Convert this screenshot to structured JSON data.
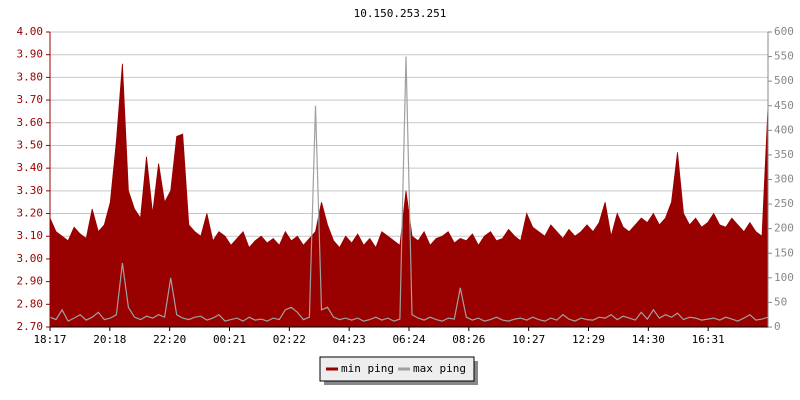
{
  "chart_data": {
    "type": "area",
    "title": "10.150.253.251",
    "xtick_labels": [
      "18:17",
      "20:18",
      "22:20",
      "00:21",
      "02:22",
      "04:23",
      "06:24",
      "08:26",
      "10:27",
      "12:29",
      "14:30",
      "16:31"
    ],
    "ylim": [
      2.7,
      4.0
    ],
    "yticks": [
      {
        "value": 2.7,
        "label": "2.70"
      },
      {
        "value": 2.8,
        "label": "2.80"
      },
      {
        "value": 2.9,
        "label": "2.90"
      },
      {
        "value": 3.0,
        "label": "3.00"
      },
      {
        "value": 3.1,
        "label": "3.10"
      },
      {
        "value": 3.2,
        "label": "3.20"
      },
      {
        "value": 3.3,
        "label": "3.30"
      },
      {
        "value": 3.4,
        "label": "3.40"
      },
      {
        "value": 3.5,
        "label": "3.50"
      },
      {
        "value": 3.6,
        "label": "3.60"
      },
      {
        "value": 3.7,
        "label": "3.70"
      },
      {
        "value": 3.8,
        "label": "3.80"
      },
      {
        "value": 3.9,
        "label": "3.90"
      },
      {
        "value": 4.0,
        "label": "4.00"
      }
    ],
    "y2lim": [
      0,
      600
    ],
    "y2ticks": [
      0,
      50,
      100,
      150,
      200,
      250,
      300,
      350,
      400,
      450,
      500,
      550,
      600
    ],
    "grid": true,
    "legend": "bottom",
    "series": [
      {
        "name": "min ping",
        "color": "#990000",
        "values": [
          3.18,
          3.12,
          3.1,
          3.08,
          3.14,
          3.11,
          3.09,
          3.22,
          3.12,
          3.15,
          3.25,
          3.52,
          3.86,
          3.3,
          3.22,
          3.18,
          3.45,
          3.2,
          3.42,
          3.25,
          3.3,
          3.54,
          3.55,
          3.15,
          3.12,
          3.1,
          3.2,
          3.08,
          3.12,
          3.1,
          3.06,
          3.09,
          3.12,
          3.05,
          3.08,
          3.1,
          3.07,
          3.09,
          3.06,
          3.12,
          3.08,
          3.1,
          3.06,
          3.09,
          3.12,
          3.25,
          3.15,
          3.08,
          3.05,
          3.1,
          3.07,
          3.11,
          3.06,
          3.09,
          3.05,
          3.12,
          3.1,
          3.08,
          3.06,
          3.3,
          3.1,
          3.08,
          3.12,
          3.06,
          3.09,
          3.1,
          3.12,
          3.07,
          3.09,
          3.08,
          3.11,
          3.06,
          3.1,
          3.12,
          3.08,
          3.09,
          3.13,
          3.1,
          3.08,
          3.2,
          3.14,
          3.12,
          3.1,
          3.15,
          3.12,
          3.09,
          3.13,
          3.1,
          3.12,
          3.15,
          3.12,
          3.16,
          3.25,
          3.1,
          3.2,
          3.14,
          3.12,
          3.15,
          3.18,
          3.16,
          3.2,
          3.15,
          3.18,
          3.25,
          3.47,
          3.2,
          3.15,
          3.18,
          3.14,
          3.16,
          3.2,
          3.15,
          3.14,
          3.18,
          3.15,
          3.12,
          3.16,
          3.12,
          3.1,
          3.67
        ]
      },
      {
        "name": "max ping",
        "color": "#a0a0a0",
        "axis": "y2",
        "values": [
          20,
          15,
          35,
          12,
          18,
          25,
          14,
          20,
          30,
          15,
          18,
          25,
          130,
          40,
          20,
          15,
          22,
          18,
          25,
          20,
          100,
          25,
          18,
          15,
          20,
          22,
          14,
          18,
          25,
          12,
          15,
          18,
          12,
          20,
          14,
          16,
          12,
          18,
          15,
          35,
          40,
          30,
          15,
          20,
          450,
          35,
          40,
          20,
          15,
          18,
          14,
          18,
          12,
          15,
          20,
          14,
          18,
          12,
          16,
          550,
          25,
          18,
          14,
          20,
          15,
          12,
          18,
          16,
          80,
          20,
          14,
          18,
          12,
          15,
          20,
          14,
          12,
          16,
          18,
          14,
          20,
          15,
          12,
          18,
          14,
          25,
          16,
          12,
          18,
          15,
          14,
          20,
          18,
          25,
          15,
          22,
          18,
          14,
          30,
          16,
          35,
          18,
          25,
          20,
          28,
          15,
          20,
          18,
          14,
          16,
          18,
          14,
          20,
          16,
          12,
          18,
          25,
          14,
          16,
          20
        ]
      }
    ]
  }
}
